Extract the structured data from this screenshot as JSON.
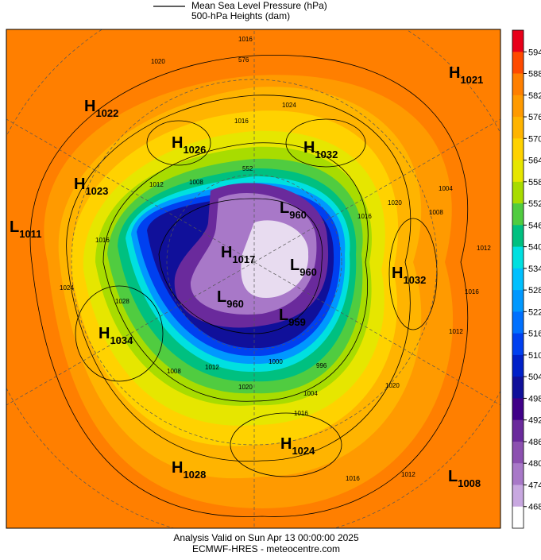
{
  "header": {
    "legend_line": "Mean Sea Level Pressure (hPa)",
    "subtitle": "500-hPa Heights (dam)"
  },
  "colorbar": {
    "ticks": [
      594,
      588,
      582,
      576,
      570,
      564,
      558,
      552,
      546,
      540,
      534,
      528,
      522,
      516,
      510,
      504,
      498,
      492,
      486,
      480,
      474,
      468
    ],
    "colors": [
      "#e8001a",
      "#ff4a00",
      "#ff7f00",
      "#ff9a00",
      "#ffb400",
      "#ffd200",
      "#e6e600",
      "#a8dc00",
      "#50cc40",
      "#00c080",
      "#00e0e0",
      "#00c0ff",
      "#0098ff",
      "#0070ff",
      "#0040f0",
      "#0020c8",
      "#10109a",
      "#400088",
      "#6a2a9c",
      "#8c50b0",
      "#a878c8",
      "#c8a8e0",
      "#ffffff"
    ]
  },
  "centers": [
    {
      "letter": "H",
      "value": 1021
    },
    {
      "letter": "H",
      "value": 1022
    },
    {
      "letter": "H",
      "value": 1026
    },
    {
      "letter": "H",
      "value": 1032
    },
    {
      "letter": "H",
      "value": 1023
    },
    {
      "letter": "L",
      "value": 960
    },
    {
      "letter": "L",
      "value": 1011
    },
    {
      "letter": "H",
      "value": 1017
    },
    {
      "letter": "L",
      "value": 960
    },
    {
      "letter": "H",
      "value": 1032
    },
    {
      "letter": "L",
      "value": 960
    },
    {
      "letter": "L",
      "value": 959
    },
    {
      "letter": "H",
      "value": 1034
    },
    {
      "letter": "H",
      "value": 1024
    },
    {
      "letter": "H",
      "value": 1028
    },
    {
      "letter": "L",
      "value": 1008
    }
  ],
  "contour_labels": [
    1016,
    1020,
    1024,
    1016,
    1012,
    1008,
    1016,
    1020,
    1008,
    1004,
    1012,
    1016,
    1028,
    1024,
    1008,
    1012,
    1020,
    1000,
    996,
    1004,
    1016,
    1020,
    1012,
    1016,
    1016,
    1012,
    552,
    576
  ],
  "footer": {
    "line1": "Analysis Valid on Sun Apr 13 00:00:00 2025",
    "line2": "ECMWF-HRES  - meteocentre.com"
  }
}
